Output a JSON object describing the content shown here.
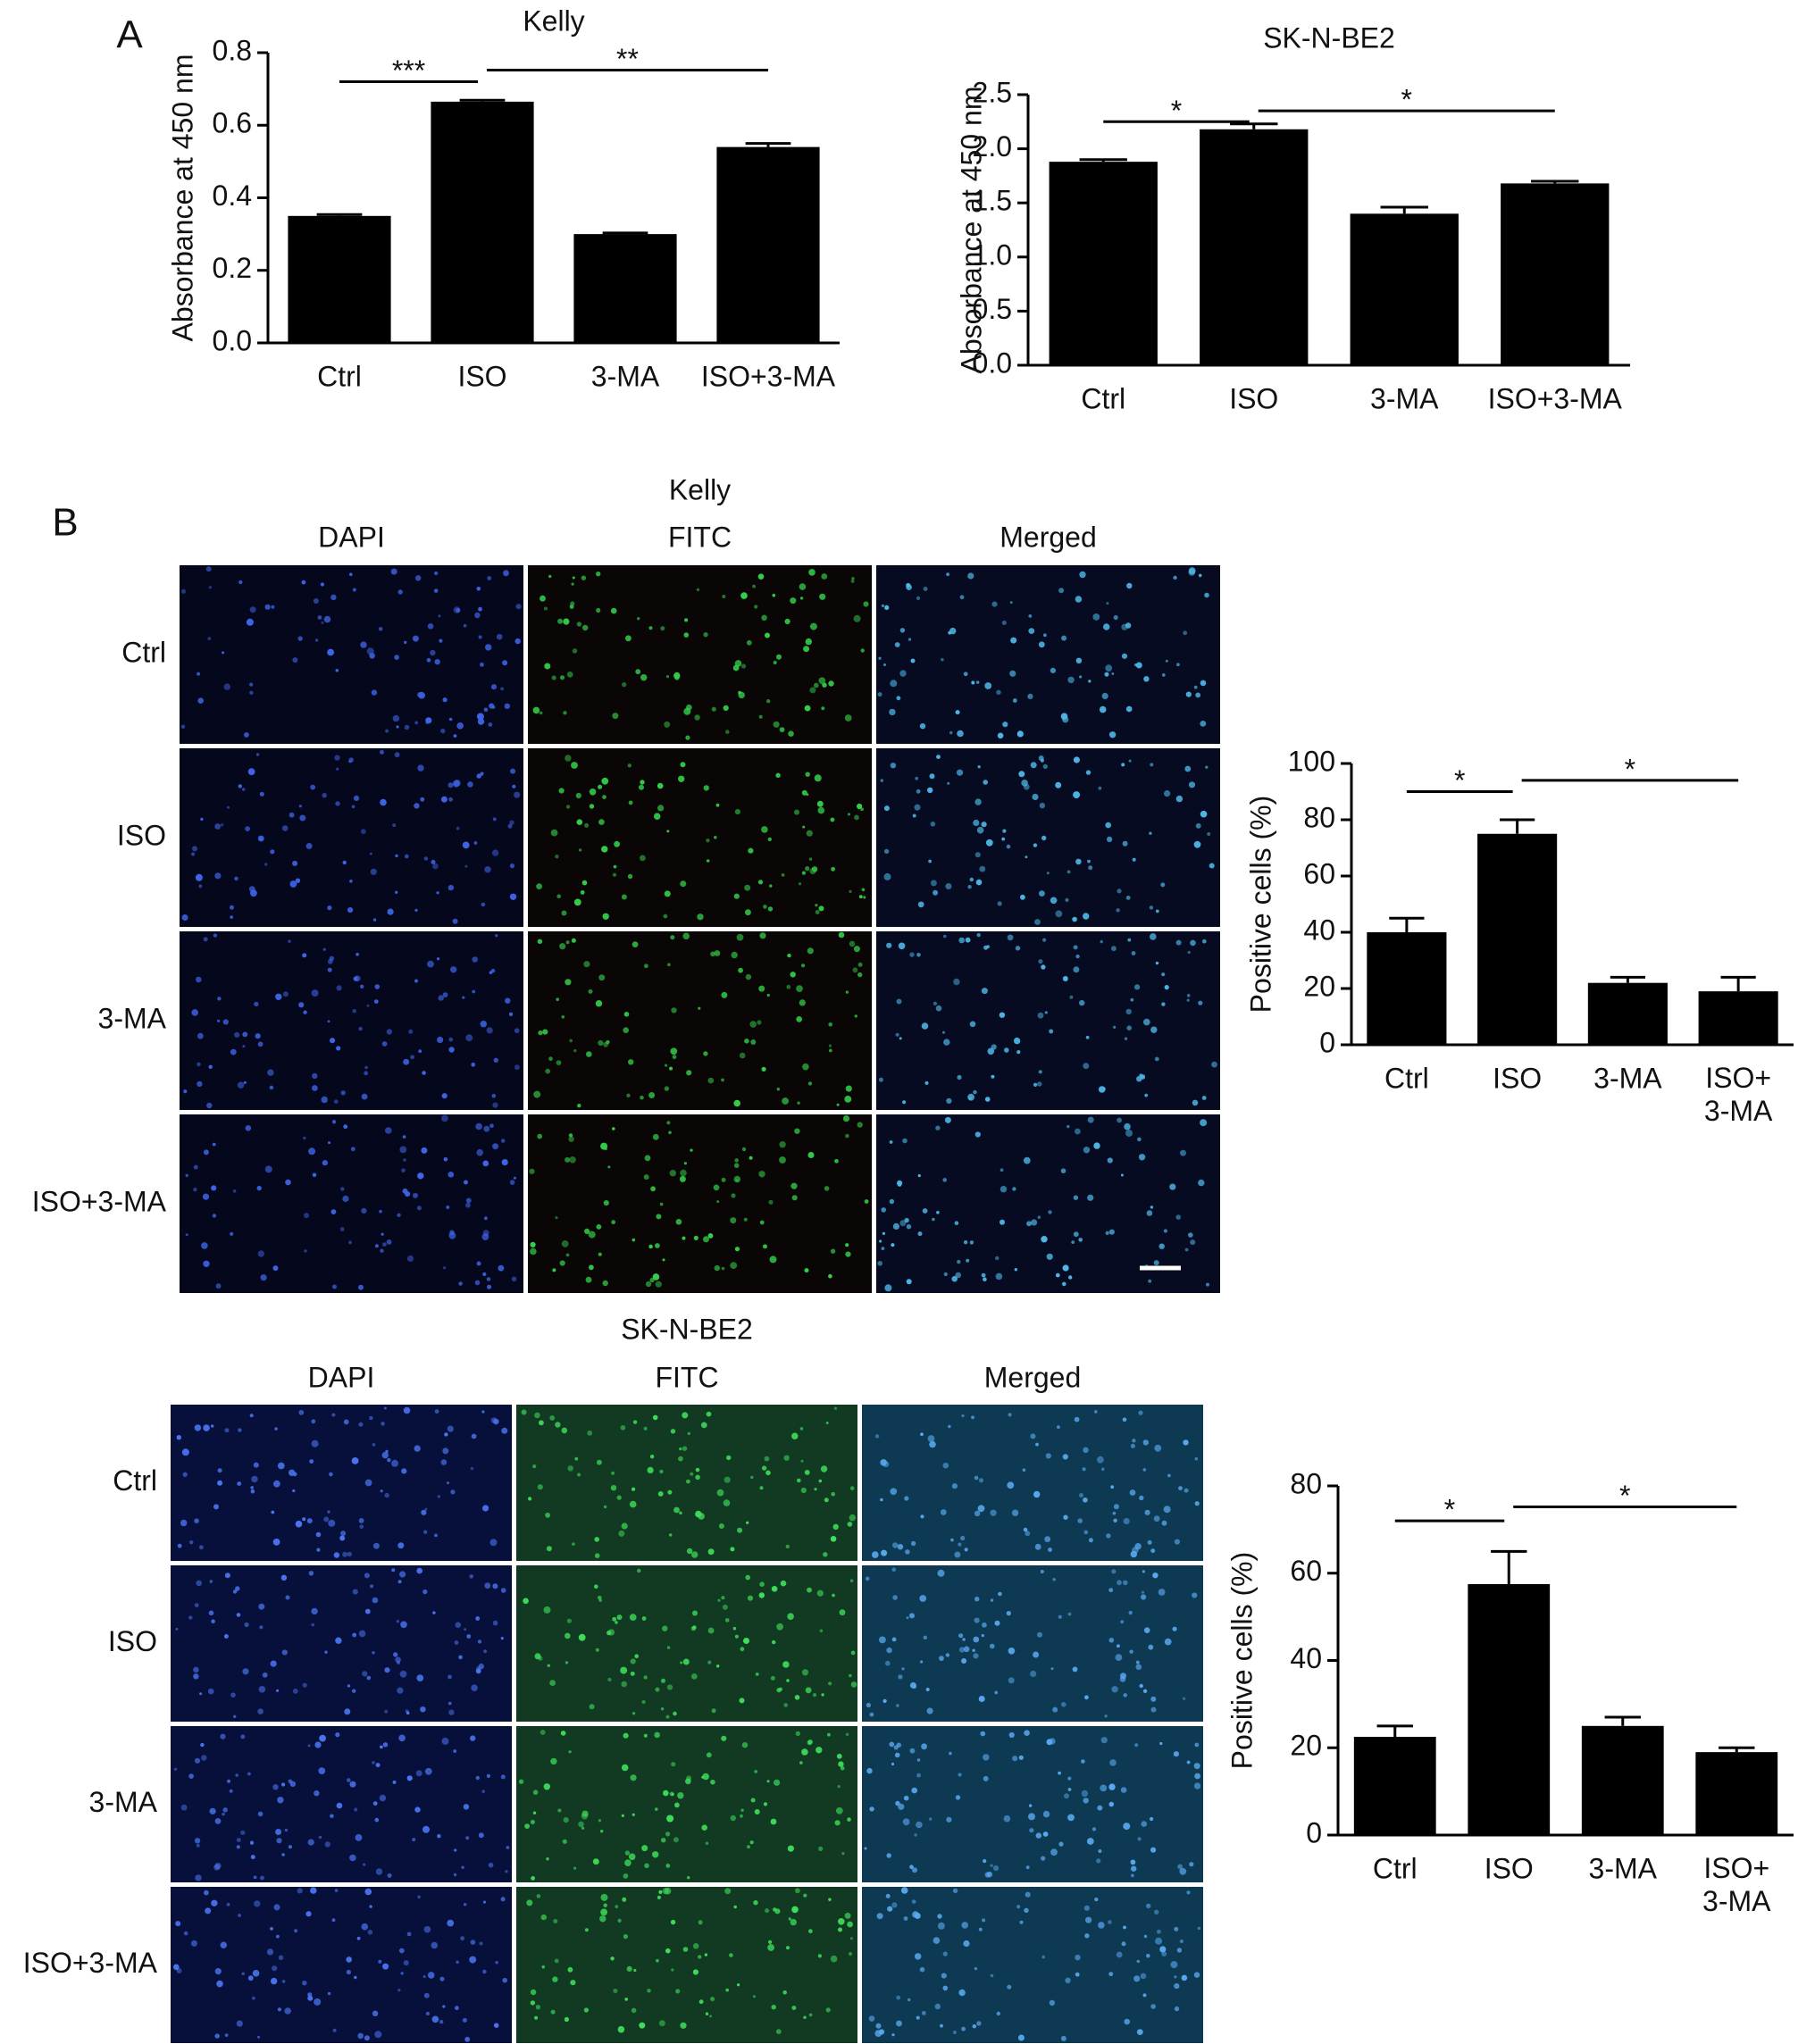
{
  "panel_labels": [
    "A",
    "B"
  ],
  "chart_data": [
    {
      "type": "bar",
      "title": "Kelly",
      "ylabel": "Absorbance at 450 nm",
      "categories": [
        "Ctrl",
        "ISO",
        "3-MA",
        "ISO+3-MA"
      ],
      "values": [
        0.35,
        0.665,
        0.3,
        0.54
      ],
      "errors": [
        0.004,
        0.004,
        0.003,
        0.01
      ],
      "color": "#000000",
      "ylim": [
        0,
        0.8
      ],
      "yticks": [
        {
          "value": 0,
          "label": "0.0"
        },
        0.2,
        0.4,
        0.6,
        0.8
      ],
      "annotations": [
        "***",
        "**"
      ]
    },
    {
      "type": "bar",
      "title": "SK-N-BE2",
      "ylabel": "Absorbance at 450 nm",
      "categories": [
        "Ctrl",
        "ISO",
        "3-MA",
        "ISO+3-MA"
      ],
      "values": [
        1.88,
        2.18,
        1.4,
        1.68
      ],
      "errors": [
        0.02,
        0.05,
        0.06,
        0.02
      ],
      "color": "#000000",
      "ylim": [
        0,
        2.5
      ],
      "yticks": [
        {
          "value": 0,
          "label": "0.0"
        },
        0.5,
        {
          "value": 1,
          "label": "1.0"
        },
        1.5,
        {
          "value": 2,
          "label": "2.0"
        },
        2.5
      ],
      "annotations": [
        "*",
        "*"
      ]
    },
    {
      "type": "bar",
      "ylabel": "Positive cells (%)",
      "categories": [
        "Ctrl",
        "ISO",
        "3-MA",
        "ISO+\n3-MA"
      ],
      "values": [
        40,
        75,
        22,
        19
      ],
      "errors": [
        5,
        5,
        2,
        5
      ],
      "color": "#000000",
      "ylim": [
        0,
        100
      ],
      "yticks": [
        0,
        20,
        40,
        60,
        80,
        100
      ],
      "annotations": [
        "*",
        "*"
      ]
    },
    {
      "type": "bar",
      "ylabel": "Positive cells (%)",
      "categories": [
        "Ctrl",
        "ISO",
        "3-MA",
        "ISO+\n3-MA"
      ],
      "values": [
        22.5,
        57.5,
        25,
        19
      ],
      "errors": [
        2.5,
        7.5,
        2,
        1
      ],
      "color": "#000000",
      "ylim": [
        0,
        80
      ],
      "yticks": [
        0,
        20,
        40,
        60,
        80
      ],
      "annotations": [
        "*",
        "*"
      ]
    }
  ],
  "micrographs": [
    {
      "title": "Kelly",
      "columns": [
        "DAPI",
        "FITC",
        "Merged"
      ],
      "rows": [
        "Ctrl",
        "ISO",
        "3-MA",
        "ISO+3-MA"
      ]
    },
    {
      "title": "SK-N-BE2",
      "columns": [
        "DAPI",
        "FITC",
        "Merged"
      ],
      "rows": [
        "Ctrl",
        "ISO",
        "3-MA",
        "ISO+3-MA"
      ]
    }
  ]
}
